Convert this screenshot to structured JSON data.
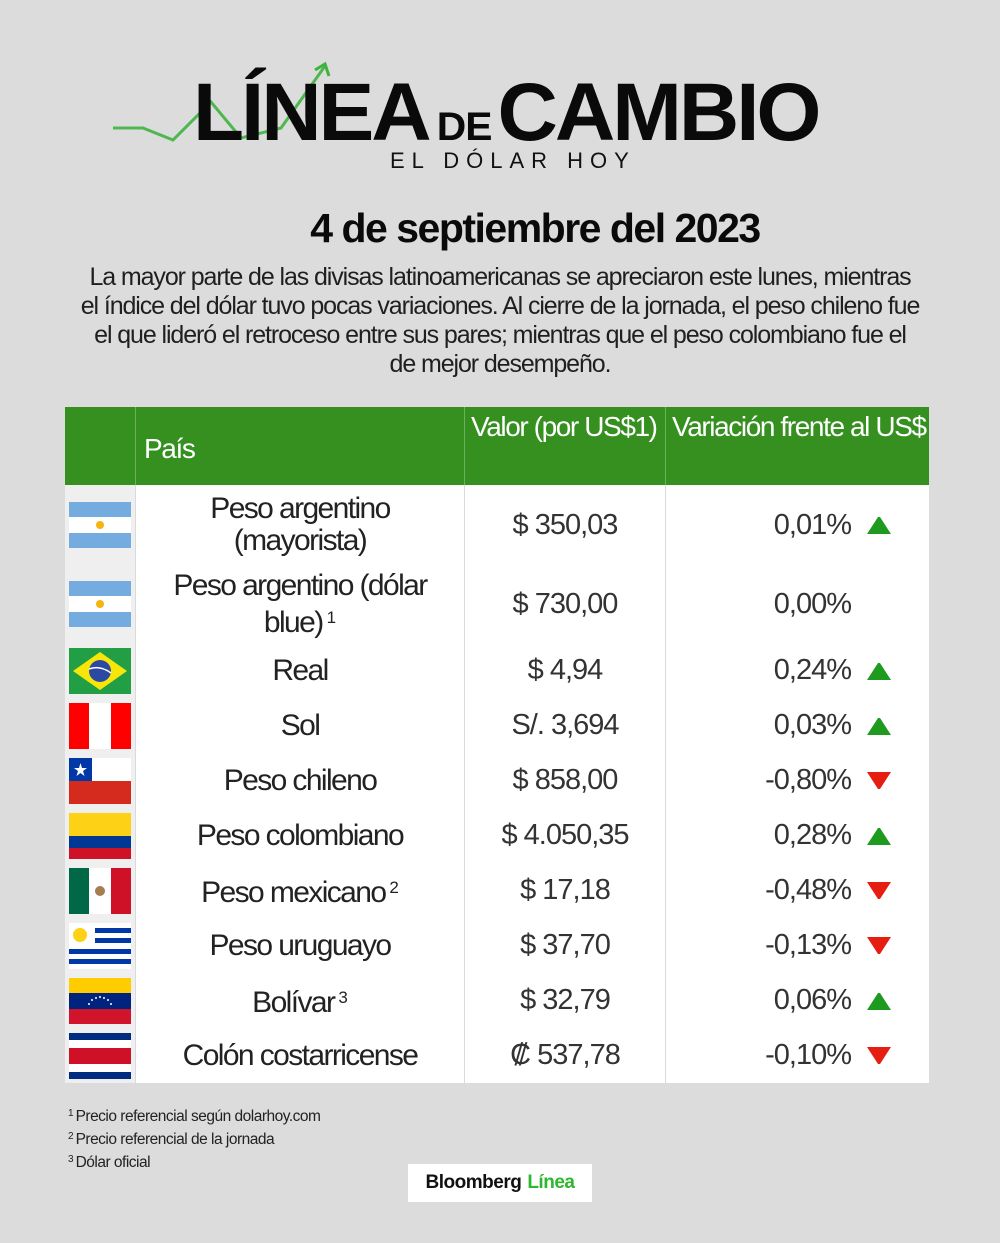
{
  "header": {
    "logo_word1": "LÍNEA",
    "logo_de": "DE",
    "logo_word2": "CAMBIO",
    "logo_subtitle": "EL DÓLAR HOY",
    "date": "4 de septiembre del 2023",
    "summary": "La mayor parte de las divisas latinoamericanas se apreciaron este lunes, mientras el índice del dólar tuvo pocas variaciones. Al cierre de la jornada, el peso chileno fue el que lideró el retroceso entre sus pares; mientras que el peso colombiano fue el de mejor desempeño."
  },
  "colors": {
    "header_green": "#36901f",
    "up_arrow": "#1e9a1e",
    "down_arrow": "#e61e12",
    "background": "#dcdcdc",
    "brand_green": "#2db82d"
  },
  "table": {
    "columns": [
      "",
      "País",
      "Valor (por US$1)",
      "Variación frente al US$"
    ],
    "rows": [
      {
        "flag": "argentina-flag",
        "name": "Peso argentino (mayorista)",
        "note": "",
        "value": "$ 350,03",
        "change": "0,01%",
        "direction": "up"
      },
      {
        "flag": "argentina-flag",
        "name": "Peso argentino (dólar blue)",
        "note": "1",
        "value": "$ 730,00",
        "change": "0,00%",
        "direction": "none"
      },
      {
        "flag": "brazil-flag",
        "name": "Real",
        "note": "",
        "value": "$ 4,94",
        "change": "0,24%",
        "direction": "up"
      },
      {
        "flag": "peru-flag",
        "name": "Sol",
        "note": "",
        "value": "S/. 3,694",
        "change": "0,03%",
        "direction": "up"
      },
      {
        "flag": "chile-flag",
        "name": "Peso chileno",
        "note": "",
        "value": "$ 858,00",
        "change": "-0,80%",
        "direction": "down"
      },
      {
        "flag": "colombia-flag",
        "name": "Peso colombiano",
        "note": "",
        "value": "$ 4.050,35",
        "change": "0,28%",
        "direction": "up"
      },
      {
        "flag": "mexico-flag",
        "name": "Peso mexicano",
        "note": "2",
        "value": "$ 17,18",
        "change": "-0,48%",
        "direction": "down"
      },
      {
        "flag": "uruguay-flag",
        "name": "Peso uruguayo",
        "note": "",
        "value": "$ 37,70",
        "change": "-0,13%",
        "direction": "down"
      },
      {
        "flag": "venezuela-flag",
        "name": "Bolívar",
        "note": "3",
        "value": "$ 32,79",
        "change": "0,06%",
        "direction": "up"
      },
      {
        "flag": "costa-rica-flag",
        "name": "Colón costarricense",
        "note": "",
        "value": "₡ 537,78",
        "change": "-0,10%",
        "direction": "down"
      }
    ]
  },
  "footnotes": [
    {
      "mark": "1",
      "text": "Precio referencial según dolarhoy.com"
    },
    {
      "mark": "2",
      "text": "Precio referencial de la jornada"
    },
    {
      "mark": "3",
      "text": "Dólar oficial"
    }
  ],
  "brand": {
    "word1": "Bloomberg",
    "word2": "Línea"
  },
  "chart_data": {
    "type": "table",
    "title": "4 de septiembre del 2023",
    "columns": [
      "País",
      "Valor (por US$1)",
      "Variación frente al US$"
    ],
    "rows": [
      [
        "Peso argentino (mayorista)",
        "$ 350,03",
        "0,01%"
      ],
      [
        "Peso argentino (dólar blue) ¹",
        "$ 730,00",
        "0,00%"
      ],
      [
        "Real",
        "$ 4,94",
        "0,24%"
      ],
      [
        "Sol",
        "S/. 3,694",
        "0,03%"
      ],
      [
        "Peso chileno",
        "$ 858,00",
        "-0,80%"
      ],
      [
        "Peso colombiano",
        "$ 4.050,35",
        "0,28%"
      ],
      [
        "Peso mexicano ²",
        "$ 17,18",
        "-0,48%"
      ],
      [
        "Peso uruguayo",
        "$ 37,70",
        "-0,13%"
      ],
      [
        "Bolívar ³",
        "$ 32,79",
        "0,06%"
      ],
      [
        "Colón costarricense",
        "₡ 537,78",
        "-0,10%"
      ]
    ]
  }
}
